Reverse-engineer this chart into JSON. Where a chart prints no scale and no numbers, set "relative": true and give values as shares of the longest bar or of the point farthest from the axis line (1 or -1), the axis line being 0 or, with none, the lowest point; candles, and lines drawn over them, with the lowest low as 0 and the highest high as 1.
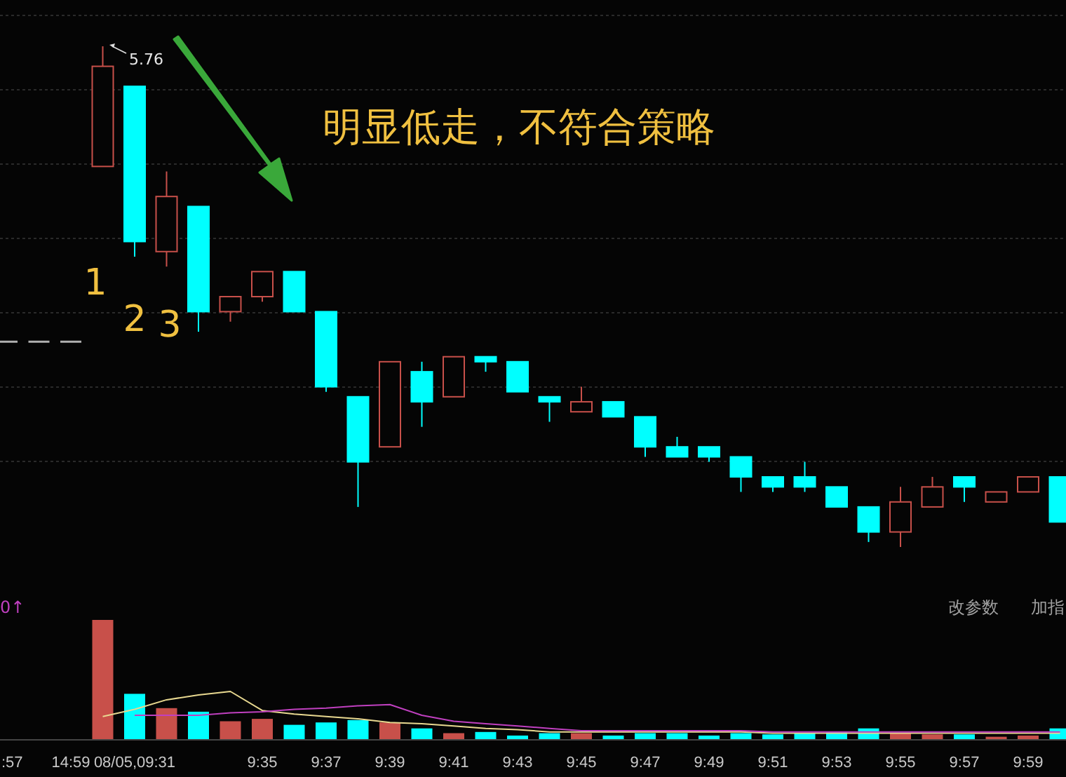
{
  "chart_data": [
    {
      "type": "candlestick",
      "relative": true,
      "grid": true,
      "tick_labels": false,
      "categories": [
        null,
        null,
        null,
        null,
        null,
        null,
        null,
        null,
        null,
        null,
        null,
        null,
        null,
        null,
        null,
        null,
        null,
        null,
        null,
        null,
        null,
        null,
        null,
        null,
        null,
        null,
        null,
        null,
        null,
        null,
        null,
        null,
        null,
        null
      ],
      "ohlc": [
        [
          0.41,
          0.41,
          0.41,
          0.41
        ],
        [
          0.41,
          0.41,
          0.41,
          0.41
        ],
        [
          0.41,
          0.41,
          0.41,
          0.41
        ],
        [
          0.76,
          1,
          0.76,
          0.96
        ],
        [
          0.92,
          0.92,
          0.58,
          0.61
        ],
        [
          0.59,
          0.75,
          0.56,
          0.7
        ],
        [
          0.68,
          0.68,
          0.43,
          0.47
        ],
        [
          0.47,
          0.5,
          0.45,
          0.5
        ],
        [
          0.5,
          0.55,
          0.49,
          0.55
        ],
        [
          0.55,
          0.55,
          0.47,
          0.47
        ],
        [
          0.47,
          0.47,
          0.31,
          0.32
        ],
        [
          0.3,
          0.3,
          0.08,
          0.17
        ],
        [
          0.2,
          0.37,
          0.2,
          0.37
        ],
        [
          0.35,
          0.37,
          0.24,
          0.29
        ],
        [
          0.3,
          0.38,
          0.3,
          0.38
        ],
        [
          0.38,
          0.38,
          0.35,
          0.37
        ],
        [
          0.37,
          0.37,
          0.31,
          0.31
        ],
        [
          0.3,
          0.3,
          0.25,
          0.29
        ],
        [
          0.27,
          0.32,
          0.27,
          0.29
        ],
        [
          0.29,
          0.29,
          0.26,
          0.26
        ],
        [
          0.26,
          0.26,
          0.18,
          0.2
        ],
        [
          0.2,
          0.22,
          0.18,
          0.18
        ],
        [
          0.2,
          0.2,
          0.17,
          0.18
        ],
        [
          0.18,
          0.18,
          0.11,
          0.14
        ],
        [
          0.14,
          0.14,
          0.11,
          0.12
        ],
        [
          0.14,
          0.17,
          0.11,
          0.12
        ],
        [
          0.12,
          0.12,
          0.08,
          0.08
        ],
        [
          0.08,
          0.08,
          0.01,
          0.03
        ],
        [
          0.03,
          0.12,
          0,
          0.09
        ],
        [
          0.08,
          0.14,
          0.08,
          0.12
        ],
        [
          0.14,
          0.14,
          0.09,
          0.12
        ],
        [
          0.09,
          0.11,
          0.09,
          0.11
        ],
        [
          0.11,
          0.14,
          0.11,
          0.14
        ],
        [
          0.14,
          0.14,
          0.05,
          0.05
        ]
      ],
      "colors": [
        "#b0b0b0",
        "#b0b0b0",
        "#b0b0b0",
        "#c8504a",
        "#00ffff",
        "#c8504a",
        "#00ffff",
        "#c8504a",
        "#c8504a",
        "#00ffff",
        "#00ffff",
        "#00ffff",
        "#c8504a",
        "#00ffff",
        "#c8504a",
        "#00ffff",
        "#00ffff",
        "#00ffff",
        "#c8504a",
        "#00ffff",
        "#00ffff",
        "#00ffff",
        "#00ffff",
        "#00ffff",
        "#00ffff",
        "#00ffff",
        "#00ffff",
        "#00ffff",
        "#c8504a",
        "#c8504a",
        "#00ffff",
        "#c8504a",
        "#c8504a",
        "#00ffff"
      ],
      "annotations": [
        "明显低走，不符合策略",
        "1",
        "2",
        "3",
        "5.76"
      ]
    },
    {
      "type": "bar",
      "relative": true,
      "tick_labels": "x",
      "categories": [
        ":57",
        null,
        "14:59",
        null,
        "08/05,09:31",
        null,
        null,
        null,
        "9:35",
        null,
        "9:37",
        null,
        "9:39",
        null,
        "9:41",
        null,
        "9:43",
        null,
        "9:45",
        null,
        "9:47",
        null,
        "9:49",
        null,
        "9:51",
        null,
        "9:53",
        null,
        "9:55",
        null,
        "9:57",
        null,
        "9:59",
        null
      ],
      "series": [
        {
          "type": "bar",
          "values": [
            null,
            null,
            null,
            1,
            0.38,
            0.26,
            0.23,
            0.15,
            0.17,
            0.12,
            0.14,
            0.16,
            0.14,
            0.09,
            0.05,
            0.06,
            0.03,
            0.05,
            0.05,
            0.03,
            0.05,
            0.05,
            0.03,
            0.05,
            0.04,
            0.05,
            0.06,
            0.09,
            0.05,
            0.04,
            0.04,
            0.02,
            0.03,
            0.09
          ],
          "colors": [
            "#b0b0b0",
            "#b0b0b0",
            "#b0b0b0",
            "#c8504a",
            "#00ffff",
            "#c8504a",
            "#00ffff",
            "#c8504a",
            "#c8504a",
            "#00ffff",
            "#00ffff",
            "#00ffff",
            "#c8504a",
            "#00ffff",
            "#c8504a",
            "#00ffff",
            "#00ffff",
            "#00ffff",
            "#c8504a",
            "#00ffff",
            "#00ffff",
            "#00ffff",
            "#00ffff",
            "#00ffff",
            "#00ffff",
            "#00ffff",
            "#00ffff",
            "#00ffff",
            "#c8504a",
            "#c8504a",
            "#00ffff",
            "#c8504a",
            "#c8504a",
            "#00ffff"
          ]
        },
        {
          "type": "line",
          "color": "#e8d890",
          "values": [
            null,
            null,
            null,
            0.19,
            0.25,
            0.33,
            0.37,
            0.4,
            0.24,
            0.21,
            0.19,
            0.17,
            0.14,
            0.13,
            0.11,
            0.09,
            0.08,
            0.06,
            0.06,
            0.06,
            0.06,
            0.06,
            0.06,
            0.06,
            0.05,
            0.05,
            0.05,
            0.05,
            0.05,
            0.05,
            0.05,
            0.05,
            0.05,
            0.05
          ]
        },
        {
          "type": "line",
          "color": "#c040c0",
          "values": [
            null,
            null,
            null,
            null,
            0.2,
            0.2,
            0.2,
            0.22,
            0.23,
            0.25,
            0.26,
            0.28,
            0.29,
            0.2,
            0.15,
            0.13,
            0.11,
            0.09,
            0.07,
            0.07,
            0.07,
            0.07,
            0.07,
            0.07,
            0.06,
            0.06,
            0.06,
            0.06,
            0.06,
            0.06,
            0.06,
            0.06,
            0.06,
            0.06
          ]
        }
      ],
      "annotations": [
        "0↑",
        "改参数",
        "加指"
      ]
    }
  ]
}
